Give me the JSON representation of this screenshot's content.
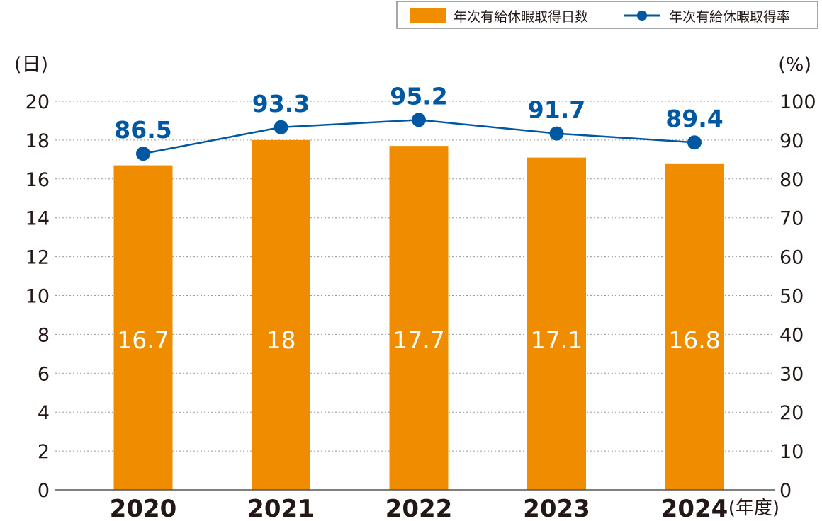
{
  "chart_data": {
    "type": "bar",
    "categories": [
      "2020",
      "2021",
      "2022",
      "2023",
      "2024"
    ],
    "category_suffix": "(年度)",
    "series": [
      {
        "name": "年次有給休暇取得日数",
        "kind": "bar",
        "axis": "left",
        "color": "#F08C00",
        "values": [
          16.7,
          18,
          17.7,
          17.1,
          16.8
        ],
        "labels": [
          "16.7",
          "18",
          "17.7",
          "17.1",
          "16.8"
        ]
      },
      {
        "name": "年次有給休暇取得率",
        "kind": "line",
        "axis": "right",
        "color": "#0058A3",
        "values": [
          86.5,
          93.3,
          95.2,
          91.7,
          89.4
        ],
        "labels": [
          "86.5",
          "93.3",
          "95.2",
          "91.7",
          "89.4"
        ]
      }
    ],
    "y_left": {
      "unit": "(日)",
      "min": 0,
      "max": 20,
      "step": 2
    },
    "y_right": {
      "unit": "(%)",
      "min": 0,
      "max": 100,
      "step": 10
    },
    "grid": true,
    "legend_position": "top-right"
  }
}
